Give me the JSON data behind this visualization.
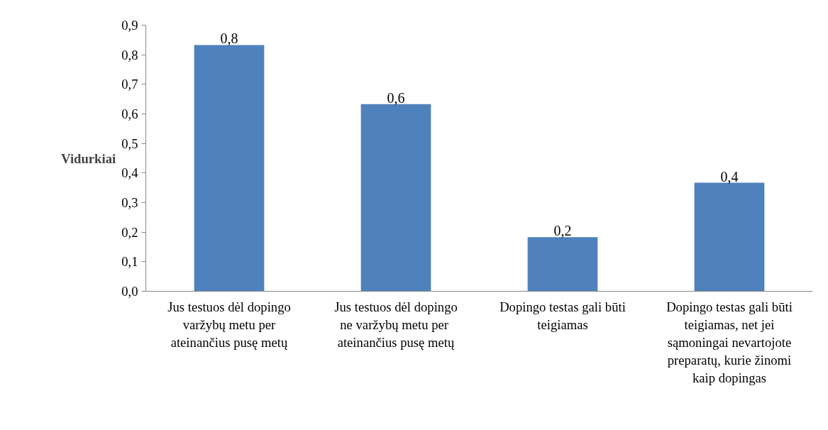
{
  "chart_data": {
    "type": "bar",
    "ylabel": "Vidurkiai",
    "categories": [
      "Jus testuos dėl dopingo varžybų metu per ateinančius pusę metų",
      "Jus testuos dėl dopingo ne varžybų  metu per ateinančius pusę metų",
      "Dopingo testas gali būti teigiamas",
      "Dopingo testas gali būti teigiamas, net jei sąmoningai nevartojote preparatų, kurie žinomi kaip dopingas"
    ],
    "values": [
      0.833,
      0.633,
      0.183,
      0.367
    ],
    "value_labels": [
      "0,8",
      "0,6",
      "0,2",
      "0,4"
    ],
    "color": "#4f81bd",
    "ylim": [
      0,
      0.9
    ],
    "yticks": [
      {
        "value": 0,
        "label": "0,0"
      },
      {
        "value": 0.1,
        "label": "0,1"
      },
      {
        "value": 0.2,
        "label": "0,2"
      },
      {
        "value": 0.3,
        "label": "0,3"
      },
      {
        "value": 0.4,
        "label": "0,4"
      },
      {
        "value": 0.5,
        "label": "0,5"
      },
      {
        "value": 0.6,
        "label": "0,6"
      },
      {
        "value": 0.7,
        "label": "0,7"
      },
      {
        "value": 0.8,
        "label": "0,8"
      },
      {
        "value": 0.9,
        "label": "0,9"
      }
    ],
    "grid": false
  }
}
